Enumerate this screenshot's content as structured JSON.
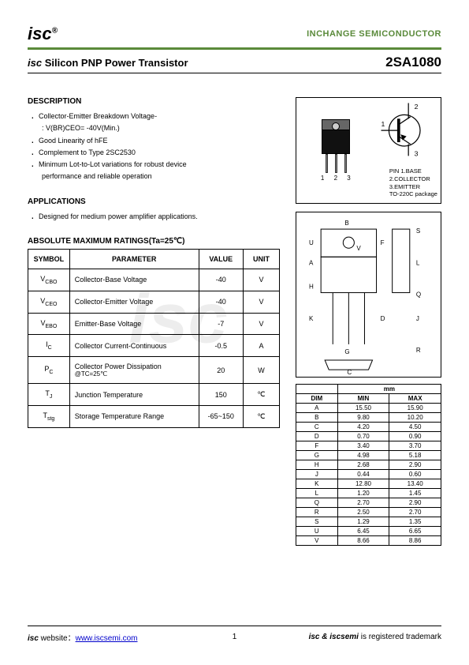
{
  "header": {
    "logo_text": "isc",
    "logo_sup": "®",
    "company": "INCHANGE SEMICONDUCTOR"
  },
  "title": {
    "left_prefix": "isc",
    "left_text": " Silicon PNP Power Transistor",
    "part_no": "2SA1080"
  },
  "description": {
    "heading": "DESCRIPTION",
    "items": [
      "Collector-Emitter Breakdown Voltage-",
      ": V(BR)CEO= -40V(Min.)",
      "Good Linearity of hFE",
      "Complement to Type 2SC2530",
      "Minimum Lot-to-Lot variations for robust device",
      "performance and reliable operation"
    ]
  },
  "applications": {
    "heading": "APPLICATIONS",
    "items": [
      "Designed for medium power amplifier applications."
    ]
  },
  "ratings": {
    "heading": "ABSOLUTE MAXIMUM RATINGS(Ta=25℃)",
    "columns": [
      "SYMBOL",
      "PARAMETER",
      "VALUE",
      "UNIT"
    ],
    "rows": [
      {
        "sym": "V",
        "sub": "CBO",
        "param": "Collector-Base Voltage",
        "value": "-40",
        "unit": "V"
      },
      {
        "sym": "V",
        "sub": "CEO",
        "param": "Collector-Emitter Voltage",
        "value": "-40",
        "unit": "V"
      },
      {
        "sym": "V",
        "sub": "EBO",
        "param": "Emitter-Base Voltage",
        "value": "-7",
        "unit": "V"
      },
      {
        "sym": "I",
        "sub": "C",
        "param": "Collector Current-Continuous",
        "value": "-0.5",
        "unit": "A"
      },
      {
        "sym": "P",
        "sub": "C",
        "param": "Collector Power Dissipation",
        "param2": "@TC=25℃",
        "value": "20",
        "unit": "W"
      },
      {
        "sym": "T",
        "sub": "J",
        "param": "Junction Temperature",
        "value": "150",
        "unit": "℃"
      },
      {
        "sym": "T",
        "sub": "stg",
        "param": "Storage Temperature Range",
        "value": "-65~150",
        "unit": "℃"
      }
    ]
  },
  "package": {
    "pin_nums": "1 2 3",
    "pin_label": "PIN",
    "pins": [
      "1.BASE",
      "2.COLLECTOR",
      "3.EMITTER",
      "TO-220C package"
    ],
    "sch_labels": {
      "c": "2",
      "b": "1",
      "e": "3"
    }
  },
  "dimensions": {
    "labels": [
      "A",
      "B",
      "C",
      "D",
      "F",
      "G",
      "H",
      "J",
      "K",
      "L",
      "Q",
      "R",
      "S",
      "U",
      "V"
    ],
    "unit_hdr": "mm",
    "col_hdrs": [
      "DIM",
      "MIN",
      "MAX"
    ],
    "rows": [
      [
        "A",
        "15.50",
        "15.90"
      ],
      [
        "B",
        "9.80",
        "10.20"
      ],
      [
        "C",
        "4.20",
        "4.50"
      ],
      [
        "D",
        "0.70",
        "0.90"
      ],
      [
        "F",
        "3.40",
        "3.70"
      ],
      [
        "G",
        "4.98",
        "5.18"
      ],
      [
        "H",
        "2.68",
        "2.90"
      ],
      [
        "J",
        "0.44",
        "0.60"
      ],
      [
        "K",
        "12.80",
        "13.40"
      ],
      [
        "L",
        "1.20",
        "1.45"
      ],
      [
        "Q",
        "2.70",
        "2.90"
      ],
      [
        "R",
        "2.50",
        "2.70"
      ],
      [
        "S",
        "1.29",
        "1.35"
      ],
      [
        "U",
        "6.45",
        "6.65"
      ],
      [
        "V",
        "8.66",
        "8.86"
      ]
    ]
  },
  "footer": {
    "left_prefix": "isc",
    "left_text": " website：",
    "url": "www.iscsemi.com",
    "page": "1",
    "right_prefix": "isc & iscsemi",
    "right_text": " is registered trademark"
  },
  "colors": {
    "brand_green": "#5a8a3a",
    "text": "#000000",
    "link": "#0000cc"
  }
}
